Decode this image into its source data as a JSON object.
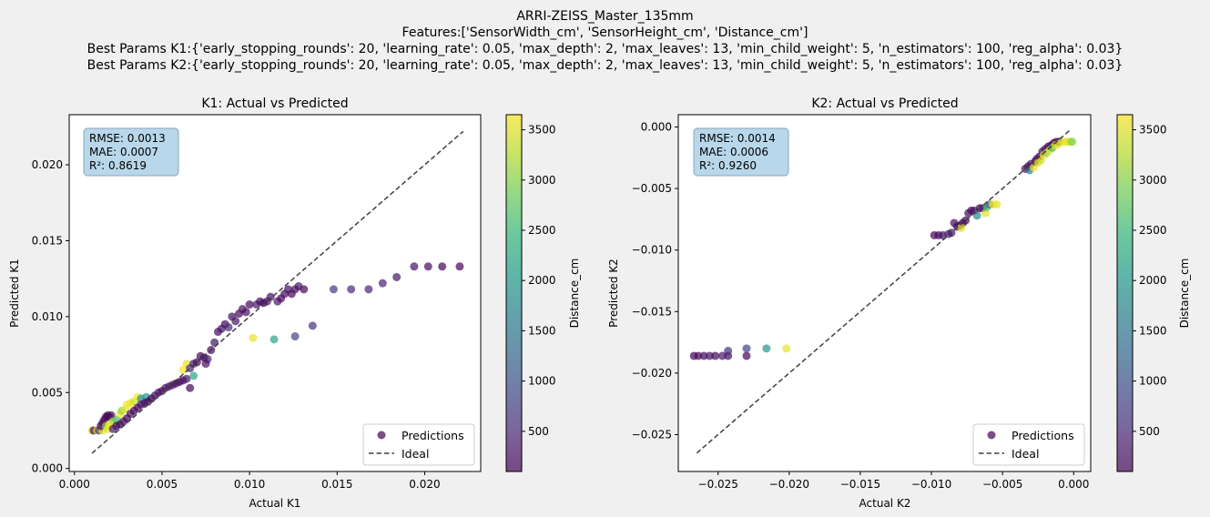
{
  "figure": {
    "title_lines": [
      "ARRI-ZEISS_Master_135mm",
      "Features:['SensorWidth_cm', 'SensorHeight_cm', 'Distance_cm']",
      "Best Params K1:{'early_stopping_rounds': 20, 'learning_rate': 0.05, 'max_depth': 2, 'max_leaves': 13, 'min_child_weight': 5, 'n_estimators': 100, 'reg_alpha': 0.03}",
      "Best Params K2:{'early_stopping_rounds': 20, 'learning_rate': 0.05, 'max_depth': 2, 'max_leaves': 13, 'min_child_weight': 5, 'n_estimators': 100, 'reg_alpha': 0.03}"
    ],
    "colormap": [
      "#440154",
      "#482878",
      "#3e4989",
      "#31688e",
      "#26828e",
      "#1f9e89",
      "#35b779",
      "#6ece58",
      "#b5de2b",
      "#fde725"
    ],
    "marker_alpha": 0.7,
    "ideal_color": "#404040",
    "stats_box_fill": "#b9d7ea",
    "stats_box_stroke": "#8aa6b8"
  },
  "chart_data": [
    {
      "type": "scatter",
      "title": "K1: Actual vs Predicted",
      "xlabel": "Actual K1",
      "ylabel": "Predicted K1",
      "xlim": [
        -0.0003,
        0.0232
      ],
      "ylim": [
        -0.0002,
        0.0233
      ],
      "xticks": [
        0.0,
        0.005,
        0.01,
        0.015,
        0.02
      ],
      "xtick_labels": [
        "0.000",
        "0.005",
        "0.010",
        "0.015",
        "0.020"
      ],
      "yticks": [
        0.0,
        0.005,
        0.01,
        0.015,
        0.02
      ],
      "ytick_labels": [
        "0.000",
        "0.005",
        "0.010",
        "0.015",
        "0.020"
      ],
      "stats": [
        "RMSE: 0.0013",
        "MAE: 0.0007",
        "R²: 0.8619"
      ],
      "ideal_line": [
        [
          0.001,
          0.001
        ],
        [
          0.0222,
          0.0222
        ]
      ],
      "legend": [
        "Predictions",
        "Ideal"
      ],
      "legend_position": "lower-right",
      "colorbar": {
        "label": "Distance_cm",
        "range": [
          100,
          3650
        ],
        "ticks": [
          500,
          1000,
          1500,
          2000,
          2500,
          3000,
          3500
        ],
        "tick_labels": [
          "500",
          "1000",
          "1500",
          "2000",
          "2500",
          "3000",
          "3500"
        ]
      },
      "points": [
        [
          0.001,
          0.0025,
          3500
        ],
        [
          0.0011,
          0.0025,
          200
        ],
        [
          0.0013,
          0.0025,
          3600
        ],
        [
          0.0014,
          0.0025,
          800
        ],
        [
          0.0016,
          0.0025,
          3500
        ],
        [
          0.0015,
          0.0028,
          150
        ],
        [
          0.0016,
          0.003,
          200
        ],
        [
          0.0017,
          0.0032,
          150
        ],
        [
          0.0018,
          0.0034,
          120
        ],
        [
          0.0019,
          0.0035,
          150
        ],
        [
          0.002,
          0.0034,
          200
        ],
        [
          0.0021,
          0.0035,
          250
        ],
        [
          0.0018,
          0.0028,
          3000
        ],
        [
          0.0019,
          0.0026,
          3500
        ],
        [
          0.002,
          0.0029,
          3600
        ],
        [
          0.0022,
          0.0031,
          3200
        ],
        [
          0.0024,
          0.0032,
          2600
        ],
        [
          0.0022,
          0.0026,
          300
        ],
        [
          0.0024,
          0.0028,
          200
        ],
        [
          0.0026,
          0.0029,
          180
        ],
        [
          0.0028,
          0.0031,
          220
        ],
        [
          0.003,
          0.0033,
          150
        ],
        [
          0.0026,
          0.0036,
          3600
        ],
        [
          0.0027,
          0.0038,
          3000
        ],
        [
          0.0029,
          0.0039,
          3500
        ],
        [
          0.003,
          0.0042,
          3600
        ],
        [
          0.0032,
          0.0043,
          3500
        ],
        [
          0.0034,
          0.0044,
          3400
        ],
        [
          0.0036,
          0.0047,
          3600
        ],
        [
          0.0038,
          0.0046,
          1800
        ],
        [
          0.0041,
          0.0047,
          2000
        ],
        [
          0.0032,
          0.0036,
          200
        ],
        [
          0.0034,
          0.0038,
          150
        ],
        [
          0.0036,
          0.004,
          180
        ],
        [
          0.0038,
          0.0042,
          250
        ],
        [
          0.004,
          0.0043,
          200
        ],
        [
          0.0042,
          0.0044,
          150
        ],
        [
          0.0044,
          0.0046,
          120
        ],
        [
          0.0046,
          0.0048,
          200
        ],
        [
          0.0048,
          0.005,
          300
        ],
        [
          0.005,
          0.0051,
          150
        ],
        [
          0.0052,
          0.0053,
          200
        ],
        [
          0.0054,
          0.0054,
          300
        ],
        [
          0.0056,
          0.0055,
          250
        ],
        [
          0.0058,
          0.0056,
          180
        ],
        [
          0.006,
          0.0057,
          150
        ],
        [
          0.0062,
          0.0058,
          200
        ],
        [
          0.0064,
          0.0059,
          300
        ],
        [
          0.0066,
          0.0053,
          150
        ],
        [
          0.0062,
          0.0065,
          3600
        ],
        [
          0.0064,
          0.0069,
          3500
        ],
        [
          0.0068,
          0.0061,
          2200
        ],
        [
          0.0066,
          0.0066,
          500
        ],
        [
          0.0068,
          0.0069,
          300
        ],
        [
          0.007,
          0.007,
          200
        ],
        [
          0.0072,
          0.0074,
          150
        ],
        [
          0.0074,
          0.0073,
          250
        ],
        [
          0.0076,
          0.0072,
          400
        ],
        [
          0.0075,
          0.0069,
          200
        ],
        [
          0.0078,
          0.0078,
          150
        ],
        [
          0.008,
          0.0083,
          300
        ],
        [
          0.0082,
          0.009,
          200
        ],
        [
          0.0084,
          0.0092,
          250
        ],
        [
          0.0086,
          0.0095,
          150
        ],
        [
          0.0088,
          0.0093,
          500
        ],
        [
          0.009,
          0.01,
          200
        ],
        [
          0.0092,
          0.0097,
          300
        ],
        [
          0.0094,
          0.0102,
          150
        ],
        [
          0.0096,
          0.0105,
          250
        ],
        [
          0.0098,
          0.0103,
          200
        ],
        [
          0.01,
          0.0108,
          150
        ],
        [
          0.0102,
          0.0086,
          3500
        ],
        [
          0.0104,
          0.0108,
          300
        ],
        [
          0.0106,
          0.011,
          200
        ],
        [
          0.0108,
          0.0109,
          150
        ],
        [
          0.011,
          0.011,
          250
        ],
        [
          0.0112,
          0.0113,
          200
        ],
        [
          0.0114,
          0.0085,
          2200
        ],
        [
          0.0116,
          0.011,
          300
        ],
        [
          0.0118,
          0.0112,
          150
        ],
        [
          0.012,
          0.0115,
          200
        ],
        [
          0.0122,
          0.0118,
          250
        ],
        [
          0.0124,
          0.0115,
          150
        ],
        [
          0.0126,
          0.0087,
          800
        ],
        [
          0.0126,
          0.0118,
          200
        ],
        [
          0.0128,
          0.012,
          300
        ],
        [
          0.0131,
          0.0118,
          150
        ],
        [
          0.0136,
          0.0094,
          600
        ],
        [
          0.0148,
          0.0118,
          700
        ],
        [
          0.0158,
          0.0118,
          500
        ],
        [
          0.0168,
          0.0118,
          450
        ],
        [
          0.0176,
          0.0122,
          400
        ],
        [
          0.0184,
          0.0126,
          300
        ],
        [
          0.0194,
          0.0133,
          250
        ],
        [
          0.0202,
          0.0133,
          200
        ],
        [
          0.021,
          0.0133,
          150
        ],
        [
          0.022,
          0.0133,
          120
        ]
      ]
    },
    {
      "type": "scatter",
      "title": "K2: Actual vs Predicted",
      "xlabel": "Actual K2",
      "ylabel": "Predicted K2",
      "xlim": [
        -0.0278,
        0.0012
      ],
      "ylim": [
        -0.028,
        0.001
      ],
      "xticks": [
        -0.025,
        -0.02,
        -0.015,
        -0.01,
        -0.005,
        0.0
      ],
      "xtick_labels": [
        "−0.025",
        "−0.020",
        "−0.015",
        "−0.010",
        "−0.005",
        "0.000"
      ],
      "yticks": [
        -0.025,
        -0.02,
        -0.015,
        -0.01,
        -0.005,
        0.0
      ],
      "ytick_labels": [
        "−0.025",
        "−0.020",
        "−0.015",
        "−0.010",
        "−0.005",
        "0.000"
      ],
      "stats": [
        "RMSE: 0.0014",
        "MAE: 0.0006",
        "R²: 0.9260"
      ],
      "ideal_line": [
        [
          -0.0265,
          -0.0265
        ],
        [
          -0.0002,
          -0.0002
        ]
      ],
      "legend": [
        "Predictions",
        "Ideal"
      ],
      "legend_position": "lower-right",
      "colorbar": {
        "label": "Distance_cm",
        "range": [
          100,
          3650
        ],
        "ticks": [
          500,
          1000,
          1500,
          2000,
          2500,
          3000,
          3500
        ],
        "tick_labels": [
          "500",
          "1000",
          "1500",
          "2000",
          "2500",
          "3000",
          "3500"
        ]
      },
      "points": [
        [
          -0.0267,
          -0.0186,
          150
        ],
        [
          -0.0264,
          -0.0186,
          200
        ],
        [
          -0.026,
          -0.0186,
          180
        ],
        [
          -0.0256,
          -0.0186,
          250
        ],
        [
          -0.0252,
          -0.0186,
          150
        ],
        [
          -0.0247,
          -0.0186,
          300
        ],
        [
          -0.0243,
          -0.0186,
          200
        ],
        [
          -0.0243,
          -0.0182,
          600
        ],
        [
          -0.023,
          -0.0186,
          150
        ],
        [
          -0.023,
          -0.018,
          800
        ],
        [
          -0.0216,
          -0.018,
          2000
        ],
        [
          -0.0202,
          -0.018,
          3500
        ],
        [
          -0.0098,
          -0.0088,
          150
        ],
        [
          -0.0095,
          -0.0088,
          200
        ],
        [
          -0.0092,
          -0.0088,
          250
        ],
        [
          -0.0088,
          -0.0087,
          400
        ],
        [
          -0.0086,
          -0.0086,
          300
        ],
        [
          -0.0084,
          -0.0078,
          200
        ],
        [
          -0.0082,
          -0.0081,
          150
        ],
        [
          -0.008,
          -0.008,
          300
        ],
        [
          -0.0078,
          -0.0078,
          200
        ],
        [
          -0.0076,
          -0.0076,
          150
        ],
        [
          -0.0079,
          -0.0082,
          3500
        ],
        [
          -0.0074,
          -0.007,
          200
        ],
        [
          -0.0072,
          -0.0068,
          250
        ],
        [
          -0.007,
          -0.0068,
          200
        ],
        [
          -0.0068,
          -0.0072,
          1800
        ],
        [
          -0.0066,
          -0.0066,
          150
        ],
        [
          -0.0064,
          -0.0066,
          300
        ],
        [
          -0.0062,
          -0.007,
          3500
        ],
        [
          -0.0061,
          -0.0065,
          2500
        ],
        [
          -0.0059,
          -0.0063,
          1000
        ],
        [
          -0.0057,
          -0.0063,
          3600
        ],
        [
          -0.0054,
          -0.0063,
          3500
        ],
        [
          -0.0034,
          -0.0034,
          150
        ],
        [
          -0.0032,
          -0.0032,
          200
        ],
        [
          -0.003,
          -0.003,
          250
        ],
        [
          -0.0031,
          -0.0035,
          1500
        ],
        [
          -0.0028,
          -0.0033,
          3600
        ],
        [
          -0.0027,
          -0.0028,
          300
        ],
        [
          -0.0026,
          -0.0026,
          200
        ],
        [
          -0.0024,
          -0.0024,
          150
        ],
        [
          -0.0025,
          -0.0029,
          3500
        ],
        [
          -0.0023,
          -0.0027,
          3400
        ],
        [
          -0.0022,
          -0.002,
          200
        ],
        [
          -0.002,
          -0.0018,
          250
        ],
        [
          -0.0021,
          -0.0023,
          3600
        ],
        [
          -0.0018,
          -0.0016,
          150
        ],
        [
          -0.0019,
          -0.0021,
          3000
        ],
        [
          -0.0016,
          -0.0015,
          200
        ],
        [
          -0.0017,
          -0.0019,
          3500
        ],
        [
          -0.0014,
          -0.0013,
          150
        ],
        [
          -0.0012,
          -0.0012,
          200
        ],
        [
          -0.0015,
          -0.0017,
          2600
        ],
        [
          -0.0013,
          -0.0015,
          3600
        ],
        [
          -0.001,
          -0.0012,
          300
        ],
        [
          -0.0011,
          -0.0014,
          3500
        ],
        [
          -0.0008,
          -0.0012,
          3500
        ],
        [
          -0.0006,
          -0.0012,
          3600
        ],
        [
          -0.0004,
          -0.0012,
          3500
        ],
        [
          -0.0002,
          -0.0012,
          3200
        ],
        [
          -0.0001,
          -0.0012,
          3000
        ]
      ]
    }
  ]
}
